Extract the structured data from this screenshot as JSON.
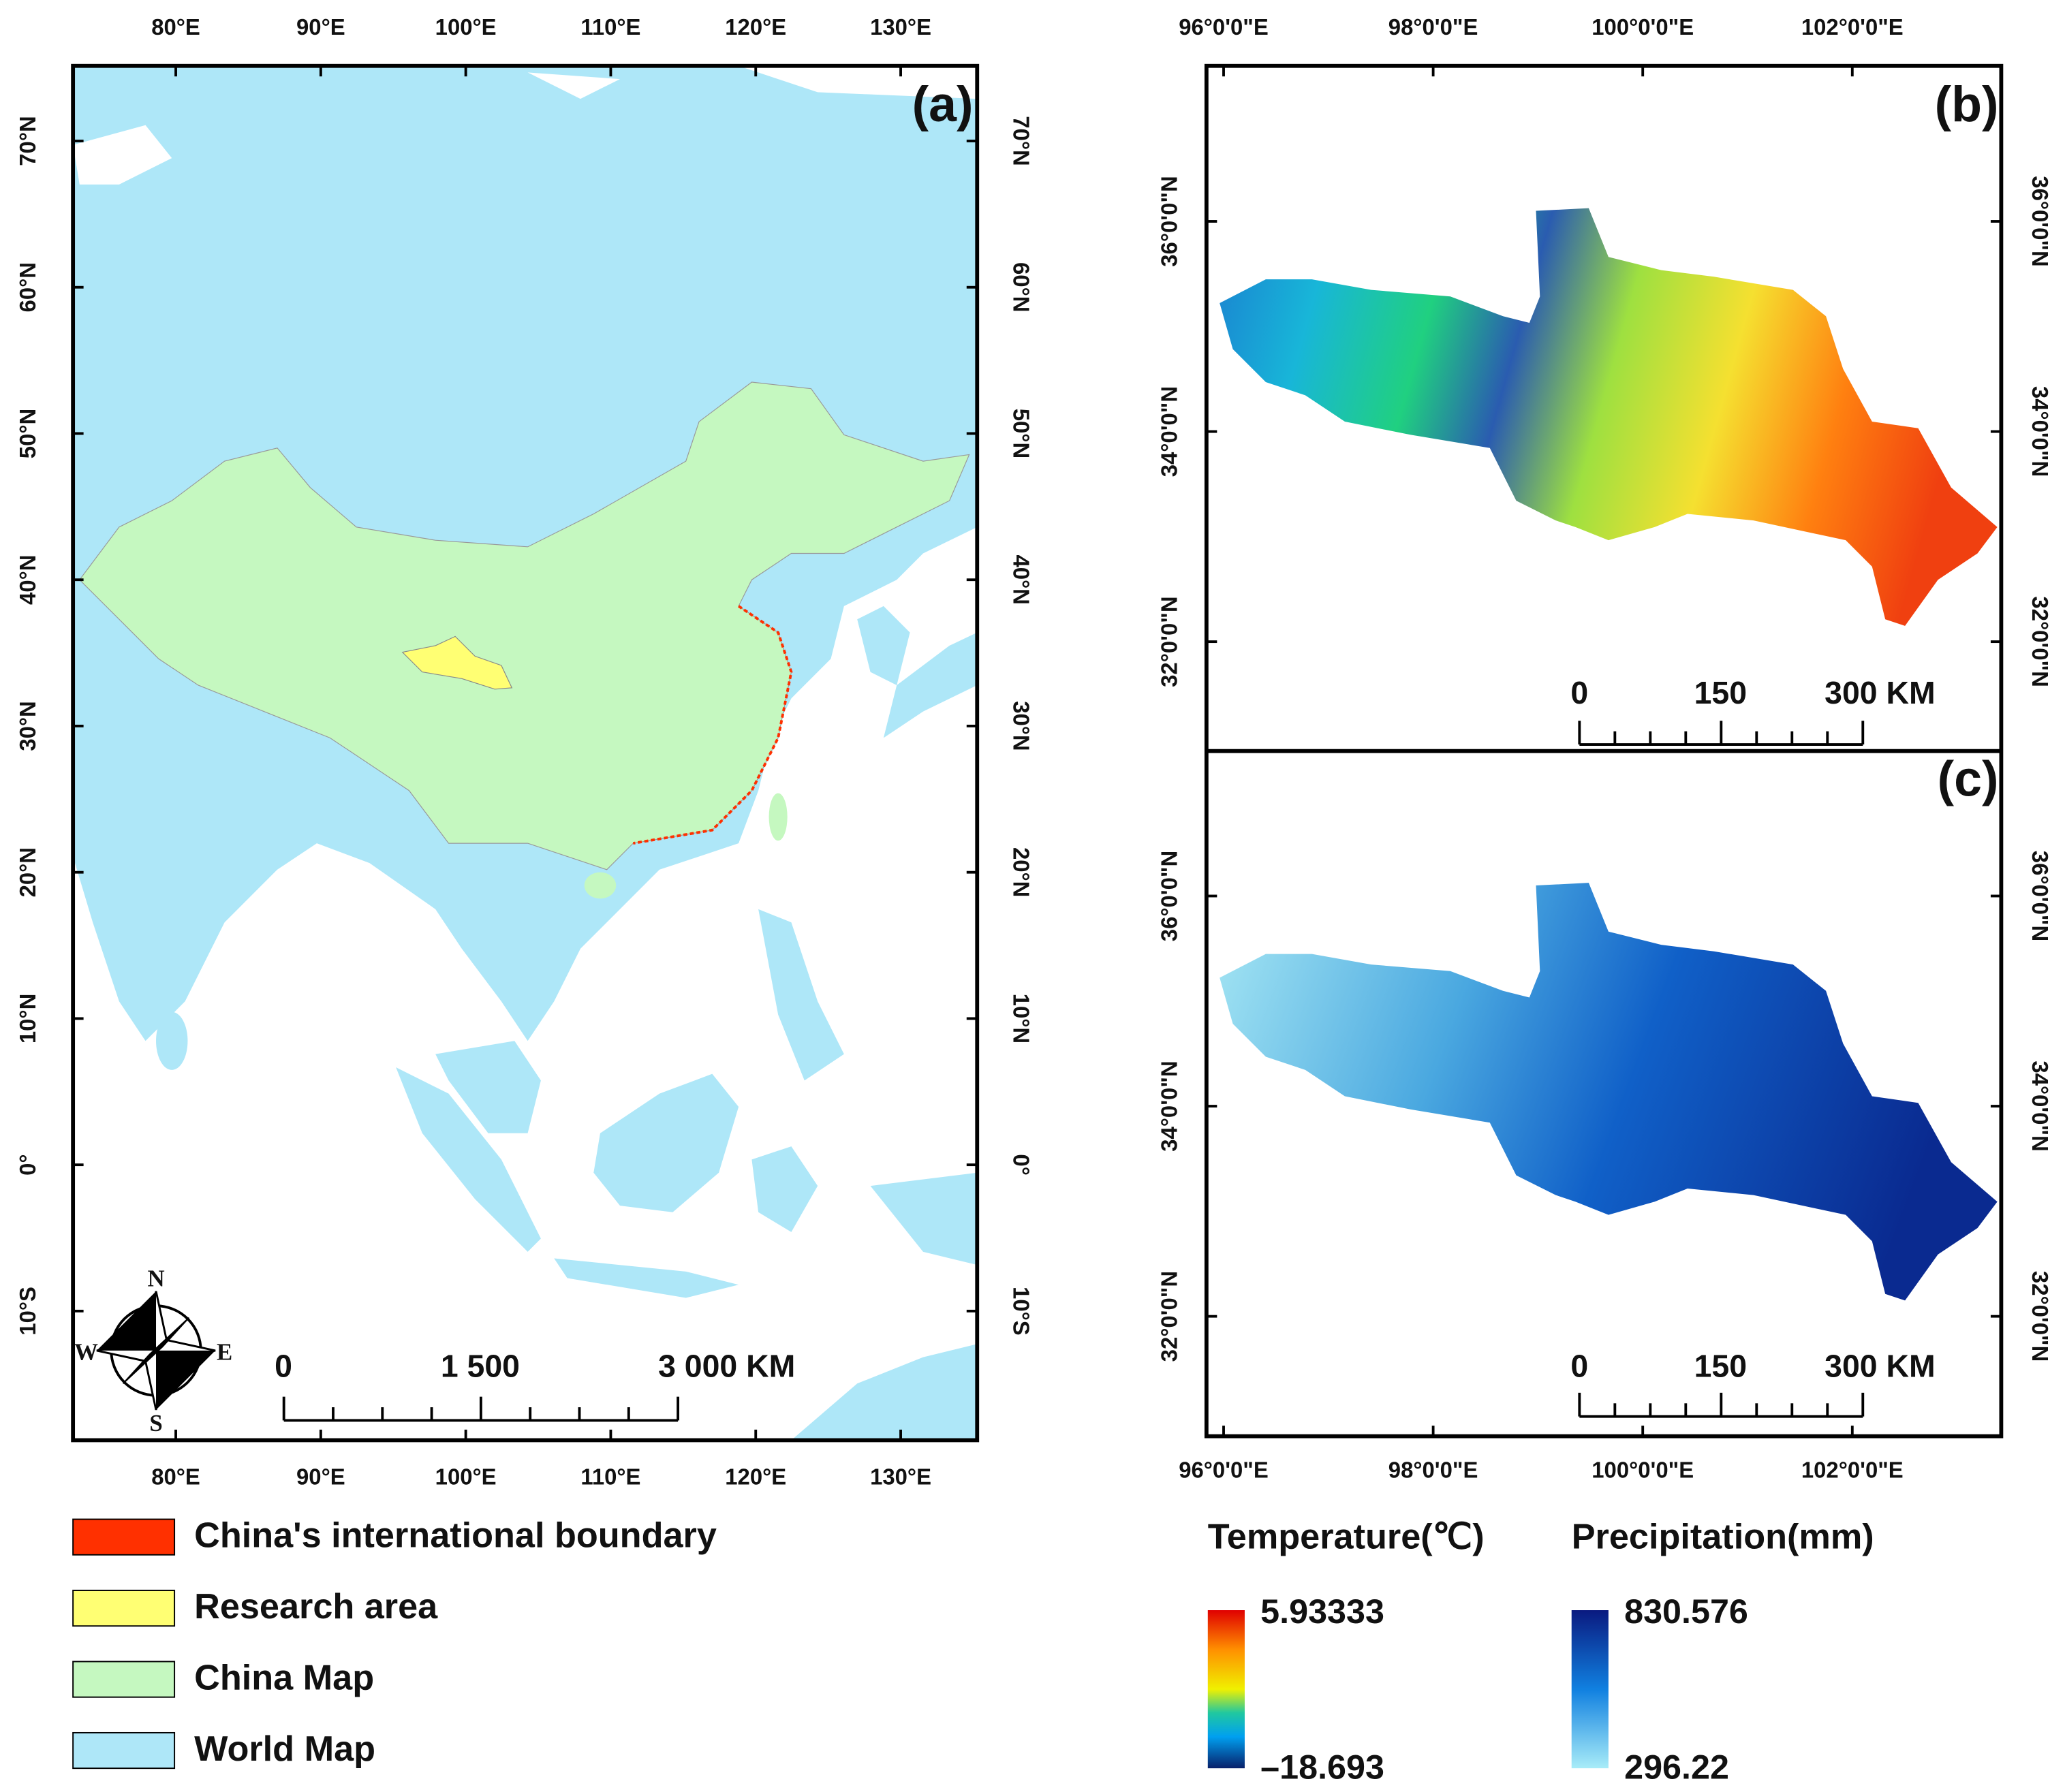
{
  "panel_a": {
    "label": "(a)",
    "lon_ticks": [
      "80°E",
      "90°E",
      "100°E",
      "110°E",
      "120°E",
      "130°E"
    ],
    "lat_ticks": [
      "70°N",
      "60°N",
      "50°N",
      "40°N",
      "30°N",
      "20°N",
      "10°N",
      "0°",
      "10°S"
    ],
    "scale_bar": [
      "0",
      "1 500",
      "3 000 KM"
    ],
    "compass": {
      "n": "N",
      "e": "E",
      "s": "S",
      "w": "W"
    }
  },
  "panel_b": {
    "label": "(b)",
    "lon_ticks": [
      "96°0'0\"E",
      "98°0'0\"E",
      "100°0'0\"E",
      "102°0'0\"E"
    ],
    "lat_ticks": [
      "36°0'0\"N",
      "34°0'0\"N",
      "32°0'0\"N"
    ],
    "scale_bar": [
      "0",
      "150",
      "300 KM"
    ]
  },
  "panel_c": {
    "label": "(c)",
    "lon_ticks": [
      "96°0'0\"E",
      "98°0'0\"E",
      "100°0'0\"E",
      "102°0'0\"E"
    ],
    "lat_ticks": [
      "36°0'0\"N",
      "34°0'0\"N",
      "32°0'0\"N"
    ],
    "scale_bar": [
      "0",
      "150",
      "300 KM"
    ]
  },
  "legend": [
    {
      "label": "China's international boundary",
      "color": "#ff3000"
    },
    {
      "label": "Research area",
      "color": "#ffff73"
    },
    {
      "label": "China Map",
      "color": "#c5f8c0"
    },
    {
      "label": "World Map",
      "color": "#aee7f8"
    }
  ],
  "colorbars": [
    {
      "title": "Temperature(℃)",
      "max": "5.93333",
      "min": "–18.693"
    },
    {
      "title": "Precipitation(mm)",
      "max": "830.576",
      "min": "296.22"
    }
  ]
}
